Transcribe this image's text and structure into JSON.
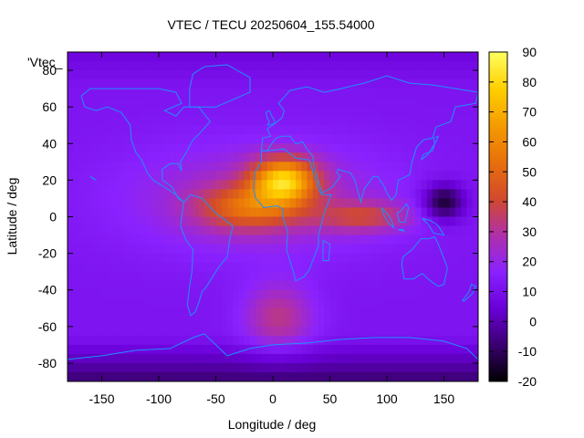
{
  "chart_data": {
    "type": "heatmap",
    "title": "VTEC / TECU 20250604_155.54000",
    "xlabel": "Longitude / deg",
    "ylabel": "Latitude / deg",
    "series_key": "'Vtec_",
    "xlim": [
      -180,
      180
    ],
    "ylim": [
      -90,
      90
    ],
    "xticks": [
      -150,
      -100,
      -50,
      0,
      50,
      100,
      150
    ],
    "yticks": [
      -80,
      -60,
      -40,
      -20,
      0,
      20,
      40,
      60,
      80
    ],
    "colorbar": {
      "range": [
        -20,
        90
      ],
      "ticks": [
        -20,
        -10,
        0,
        10,
        20,
        30,
        40,
        50,
        60,
        70,
        80,
        90
      ],
      "palette": [
        "#000000",
        "#3a0070",
        "#6a00d8",
        "#8a22ff",
        "#b030a8",
        "#d24a2c",
        "#e8700c",
        "#f49c00",
        "#ffd000",
        "#ffff60"
      ]
    },
    "grid": false,
    "features": [
      {
        "name": "main-peak",
        "lon": 10,
        "lat": 20,
        "vtec": 80
      },
      {
        "name": "equatorial-crest",
        "lon": -20,
        "lat": 5,
        "vtec": 60
      },
      {
        "name": "low-cell-west-pacific",
        "lon": 150,
        "lat": 8,
        "vtec": -8
      },
      {
        "name": "south-atlantic-tongue",
        "lon": 5,
        "lat": -55,
        "vtec": 35
      }
    ]
  }
}
